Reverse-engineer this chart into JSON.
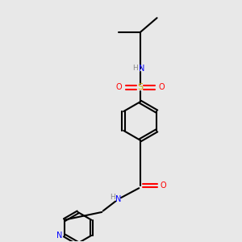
{
  "background_color": "#e8e8e8",
  "atom_colors": {
    "C": "#000000",
    "H": "#888888",
    "N": "#0000ff",
    "O": "#ff0000",
    "S": "#ccaa00"
  },
  "bond_color": "#000000",
  "figsize": [
    3.0,
    3.0
  ],
  "dpi": 100
}
